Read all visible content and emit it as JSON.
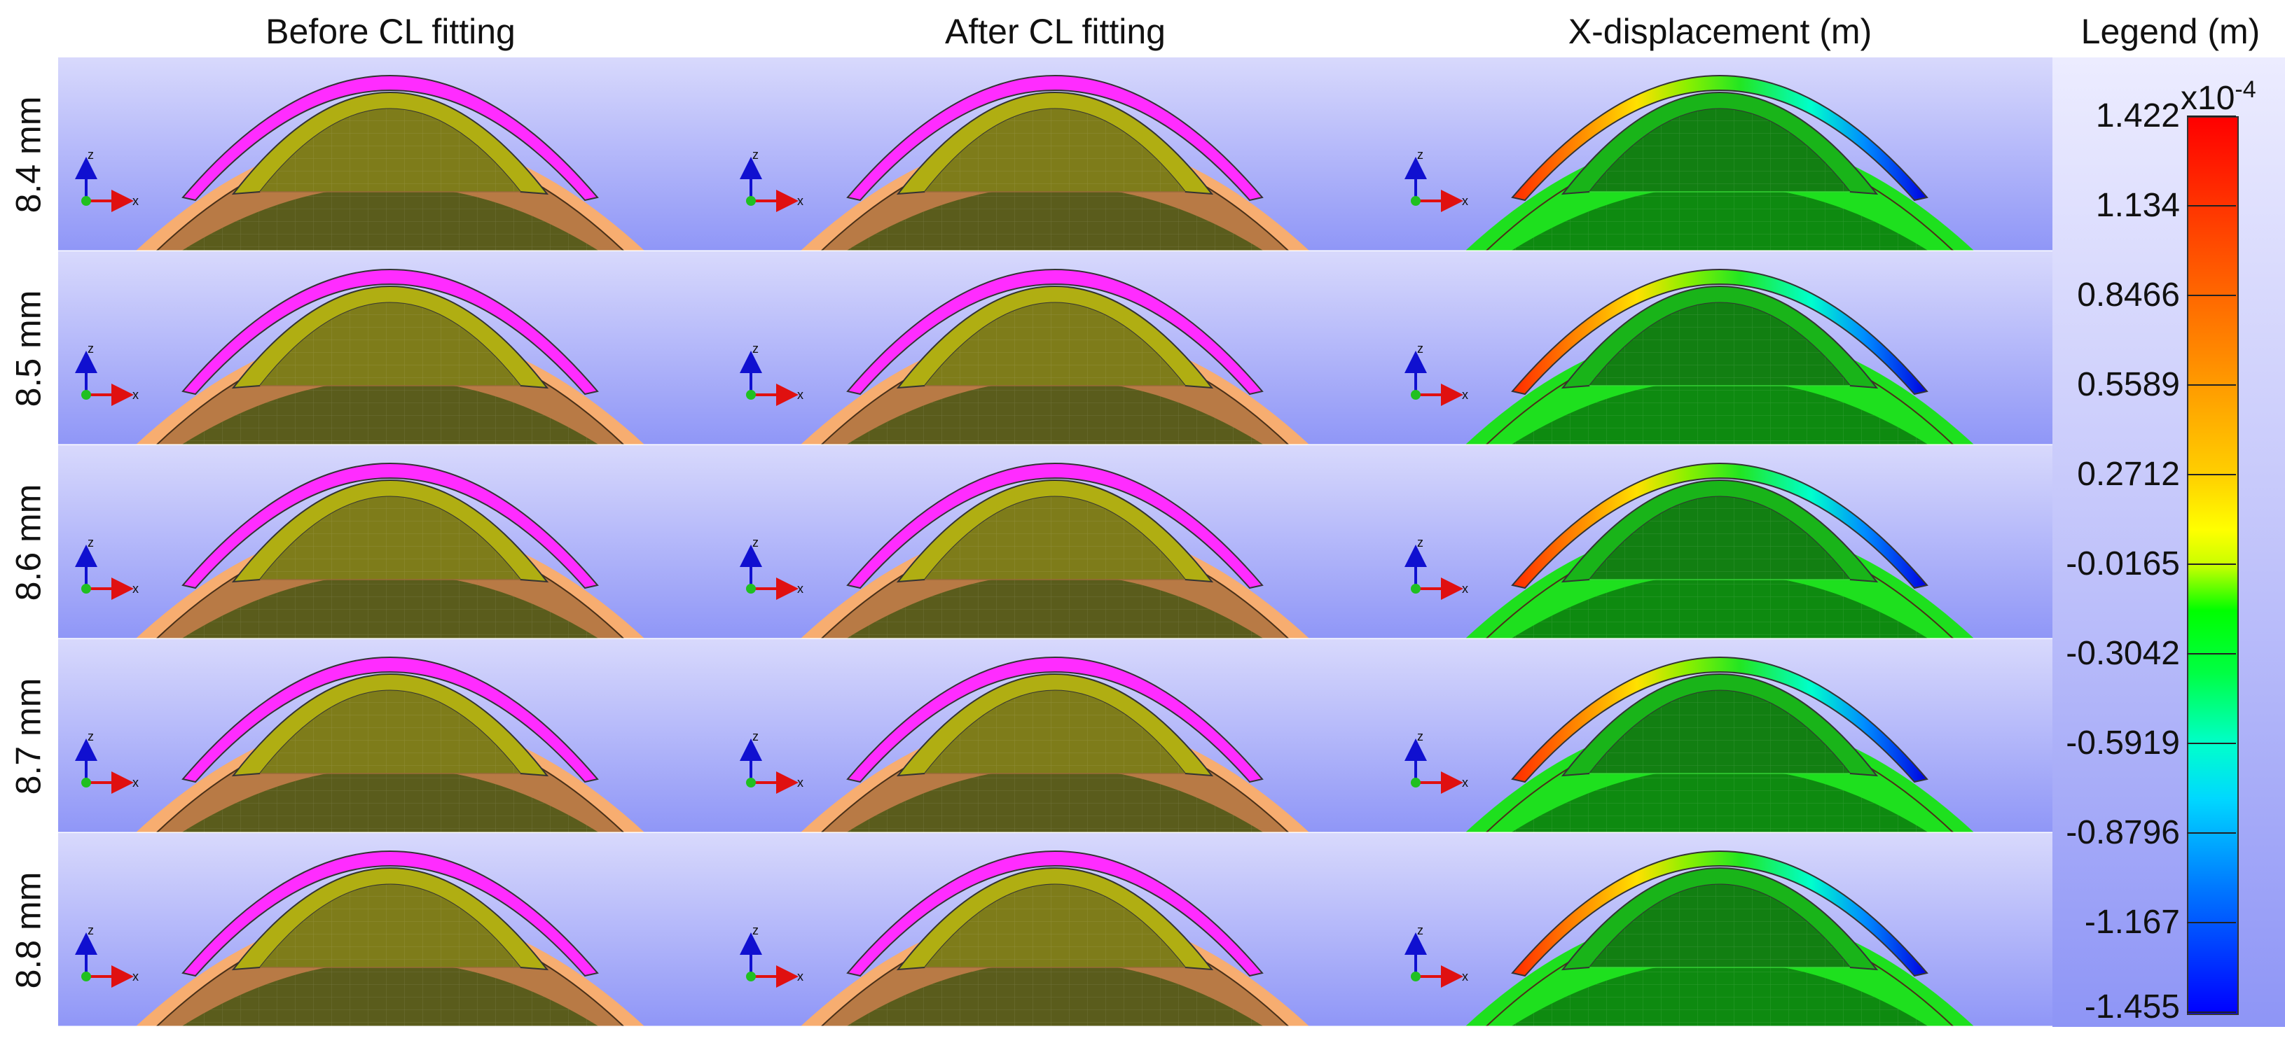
{
  "columns": [
    {
      "title": "Before CL fitting"
    },
    {
      "title": "After CL fitting"
    },
    {
      "title": "X-displacement (m)"
    }
  ],
  "rows": [
    {
      "label": "8.4 mm"
    },
    {
      "label": "8.5 mm"
    },
    {
      "label": "8.6 mm"
    },
    {
      "label": "8.7 mm"
    },
    {
      "label": "8.8 mm"
    }
  ],
  "axis_triad": {
    "z": "z",
    "x": "x"
  },
  "legend": {
    "title": "Legend (m)",
    "scale_base": "x10",
    "scale_exponent": "-4",
    "ticks": [
      "1.422",
      "1.134",
      "0.8466",
      "0.5589",
      "0.2712",
      "-0.0165",
      "-0.3042",
      "-0.5919",
      "-0.8796",
      "-1.167",
      "-1.455"
    ]
  },
  "colors": {
    "background_top": "#d8d9fc",
    "background_bottom": "#8f96f7",
    "contact_lens": "#ff2cff",
    "cornea": "#b0ae12",
    "sclera": "#b87a45",
    "lens_interior": "#5a5c1c",
    "sclera_outer": "#f7ad70",
    "displacement_green": "#1ee01e"
  }
}
